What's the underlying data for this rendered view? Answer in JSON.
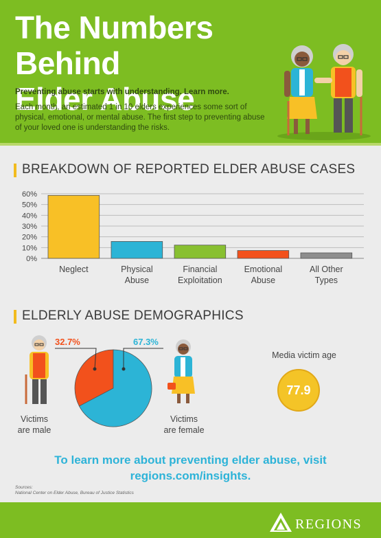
{
  "header": {
    "title_line1": "The Numbers Behind",
    "title_line2": "Elder Abuse",
    "tagline": "Preventing abuse starts with understanding. Learn more.",
    "intro": "Each month, an estimated 1 in 10 elders experiences some sort of physical, emotional, or mental abuse. The first step to preventing abuse of your loved one is understanding the risks."
  },
  "section1": {
    "title": "BREAKDOWN OF REPORTED ELDER ABUSE CASES"
  },
  "section2": {
    "title": "ELDERLY ABUSE DEMOGRAPHICS"
  },
  "chart_data": [
    {
      "type": "bar",
      "categories": [
        "Neglect",
        "Physical Abuse",
        "Financial Exploitation",
        "Emotional Abuse",
        "All Other Types"
      ],
      "category_lines": [
        [
          "Neglect"
        ],
        [
          "Physical",
          "Abuse"
        ],
        [
          "Financial",
          "Exploitation"
        ],
        [
          "Emotional",
          "Abuse"
        ],
        [
          "All Other",
          "Types"
        ]
      ],
      "values": [
        58.5,
        15.7,
        12.3,
        7.3,
        5.1
      ],
      "colors": [
        "#f8c026",
        "#2cb4d6",
        "#88c031",
        "#f2511c",
        "#8d8d8d"
      ],
      "yticks": [
        "0%",
        "10%",
        "20%",
        "30%",
        "40%",
        "50%",
        "60%"
      ],
      "ylim": [
        0,
        60
      ],
      "grid": true
    },
    {
      "type": "pie",
      "labels": [
        "Victims are male",
        "Victims are female"
      ],
      "values": [
        32.7,
        67.3
      ],
      "value_labels": [
        "32.7%",
        "67.3%"
      ],
      "colors": [
        "#f2511c",
        "#2cb4d6"
      ]
    }
  ],
  "demographics": {
    "male_label_1": "Victims",
    "male_label_2": "are male",
    "female_label_1": "Victims",
    "female_label_2": "are female",
    "median_label": "Media victim age",
    "median_value": "77.9"
  },
  "cta": {
    "line1": "To learn more about preventing elder abuse, visit",
    "line2": "regions.com/insights."
  },
  "sources": {
    "heading": "Sources:",
    "text": "National Center on Elder Abuse, Bureau of Justice Statistics"
  },
  "footer": {
    "brand": "REGIONS"
  }
}
